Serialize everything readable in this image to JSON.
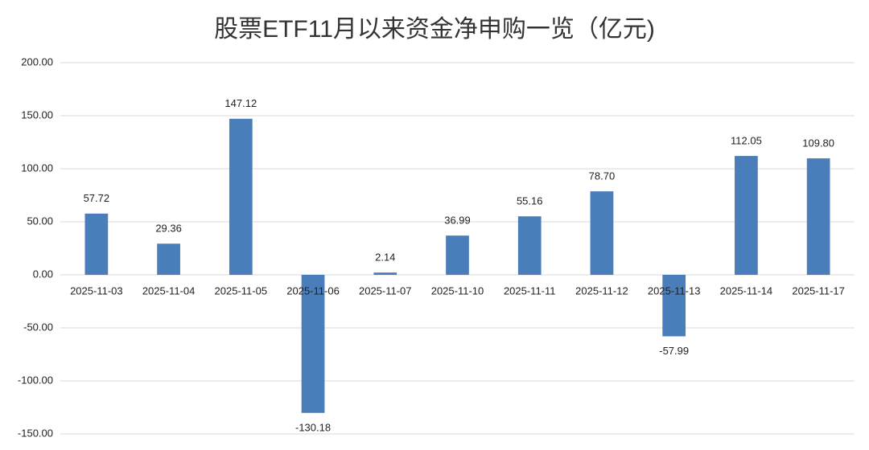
{
  "chart_data": {
    "type": "bar",
    "title": "股票ETF11月以来资金净申购一览（亿元)",
    "categories": [
      "2025-11-03",
      "2025-11-04",
      "2025-11-05",
      "2025-11-06",
      "2025-11-07",
      "2025-11-10",
      "2025-11-11",
      "2025-11-12",
      "2025-11-13",
      "2025-11-14",
      "2025-11-17"
    ],
    "values": [
      57.72,
      29.36,
      147.12,
      -130.18,
      2.14,
      36.99,
      55.16,
      78.7,
      -57.99,
      112.05,
      109.8
    ],
    "value_labels": [
      "57.72",
      "29.36",
      "147.12",
      "-130.18",
      "2.14",
      "36.99",
      "55.16",
      "78.70",
      "-57.99",
      "112.05",
      "109.80"
    ],
    "color": "#4a7ebb",
    "ylim": [
      -150,
      200
    ],
    "yticks": [
      {
        "value": -150,
        "label": "-150.00"
      },
      {
        "value": -100,
        "label": "-100.00"
      },
      {
        "value": -50,
        "label": "-50.00"
      },
      {
        "value": 0,
        "label": "0.00"
      },
      {
        "value": 50,
        "label": "50.00"
      },
      {
        "value": 100,
        "label": "100.00"
      },
      {
        "value": 150,
        "label": "150.00"
      },
      {
        "value": 200,
        "label": "200.00"
      }
    ],
    "grid": true
  }
}
